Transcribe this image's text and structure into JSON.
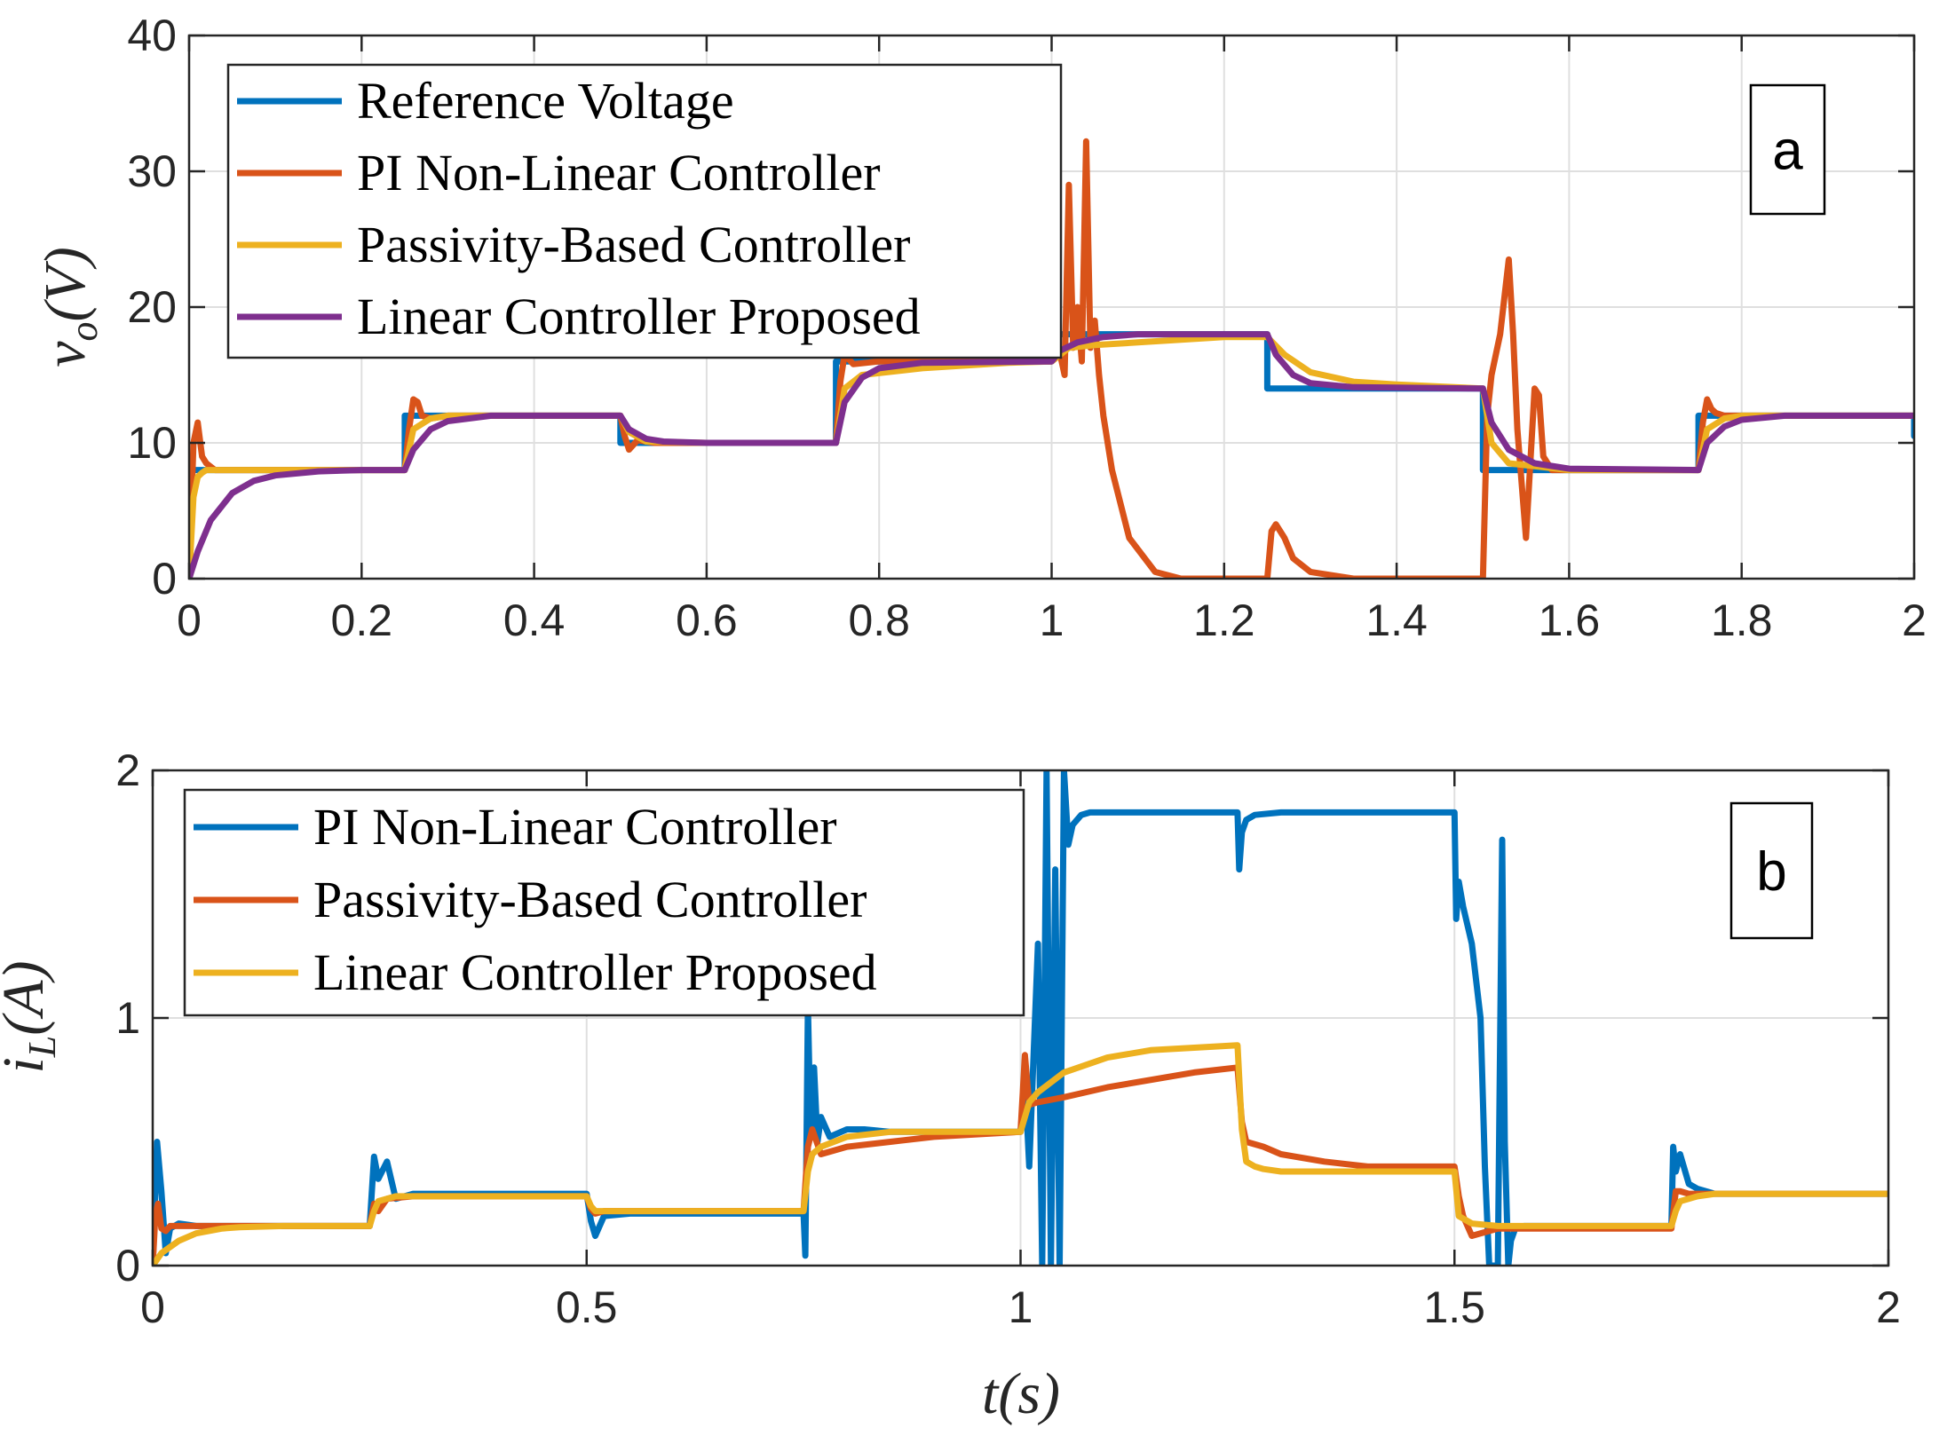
{
  "chart_data": [
    {
      "type": "line",
      "panel_tag": "a",
      "title": "",
      "xlabel": "",
      "ylabel": "v_o(V)",
      "ylabel_main": "v",
      "ylabel_sub": "o",
      "ylabel_unit": "(V)",
      "xlim": [
        0,
        2
      ],
      "ylim": [
        0,
        40
      ],
      "xticks": [
        0,
        0.2,
        0.4,
        0.6,
        0.8,
        1,
        1.2,
        1.4,
        1.6,
        1.8,
        2
      ],
      "xtick_labels": [
        "0",
        "0.2",
        "0.4",
        "0.6",
        "0.8",
        "1",
        "1.2",
        "1.4",
        "1.6",
        "1.8",
        "2"
      ],
      "yticks": [
        0,
        10,
        20,
        30,
        40
      ],
      "ytick_labels": [
        "0",
        "10",
        "20",
        "30",
        "40"
      ],
      "grid": true,
      "legend": "top-left",
      "series": [
        {
          "name": "Reference Voltage",
          "color": "#0072BD",
          "x": [
            0,
            0.25,
            0.25,
            0.5,
            0.5,
            0.75,
            0.75,
            1.0,
            1.0,
            1.25,
            1.25,
            1.5,
            1.5,
            1.75,
            1.75,
            2.0,
            2.0
          ],
          "y": [
            8,
            8,
            12,
            12,
            10,
            10,
            16,
            16,
            18,
            18,
            14,
            14,
            8,
            8,
            12,
            12,
            10.5
          ]
        },
        {
          "name": "PI Non-Linear Controller",
          "color": "#D95319",
          "x": [
            0,
            0.005,
            0.01,
            0.015,
            0.02,
            0.03,
            0.05,
            0.25,
            0.255,
            0.26,
            0.265,
            0.27,
            0.28,
            0.3,
            0.5,
            0.505,
            0.51,
            0.52,
            0.54,
            0.75,
            0.755,
            0.76,
            0.77,
            0.8,
            1.0,
            1.01,
            1.015,
            1.02,
            1.025,
            1.03,
            1.035,
            1.04,
            1.045,
            1.05,
            1.055,
            1.06,
            1.07,
            1.09,
            1.12,
            1.15,
            1.2,
            1.25,
            1.255,
            1.26,
            1.27,
            1.28,
            1.3,
            1.35,
            1.4,
            1.5,
            1.505,
            1.51,
            1.52,
            1.53,
            1.535,
            1.54,
            1.55,
            1.56,
            1.565,
            1.57,
            1.58,
            1.6,
            1.75,
            1.755,
            1.76,
            1.765,
            1.77,
            1.78,
            1.8,
            2.0
          ],
          "y": [
            0,
            10,
            11.5,
            9,
            8.5,
            8,
            8,
            8,
            11,
            13.2,
            13,
            12,
            11.8,
            12,
            12,
            10.5,
            9.5,
            10.2,
            10,
            10,
            14.5,
            16.5,
            15.8,
            16,
            16,
            16.5,
            15,
            29,
            17,
            20,
            16,
            32.2,
            17,
            19,
            15,
            12,
            8,
            3,
            0.5,
            0,
            0,
            0,
            3.5,
            4,
            3,
            1.5,
            0.5,
            0,
            0,
            0,
            12,
            15,
            18,
            23.5,
            18,
            11,
            3,
            14,
            13.5,
            9,
            8,
            8,
            8,
            11.5,
            13.2,
            12.5,
            12.2,
            12,
            12,
            12
          ]
        },
        {
          "name": "Passivity-Based Controller",
          "color": "#EDB120",
          "x": [
            0,
            0.005,
            0.01,
            0.015,
            0.02,
            0.05,
            0.25,
            0.26,
            0.28,
            0.3,
            0.5,
            0.51,
            0.53,
            0.6,
            0.75,
            0.76,
            0.78,
            0.85,
            0.95,
            1.0,
            1.02,
            1.05,
            1.1,
            1.2,
            1.25,
            1.27,
            1.3,
            1.35,
            1.4,
            1.5,
            1.51,
            1.53,
            1.6,
            1.75,
            1.76,
            1.78,
            1.8,
            2.0
          ],
          "y": [
            0,
            6,
            7.5,
            7.8,
            8,
            8,
            8,
            11,
            11.8,
            12,
            12,
            10.8,
            10.1,
            10,
            10,
            14,
            15,
            15.5,
            15.9,
            16,
            17,
            17.2,
            17.4,
            17.8,
            17.8,
            16.5,
            15.2,
            14.5,
            14.3,
            14,
            10,
            8.5,
            8,
            8,
            11,
            11.8,
            12,
            12
          ]
        },
        {
          "name": "Linear Controller Proposed",
          "color": "#7E2F8E",
          "x": [
            0,
            0.01,
            0.025,
            0.05,
            0.075,
            0.1,
            0.15,
            0.2,
            0.25,
            0.26,
            0.28,
            0.3,
            0.35,
            0.5,
            0.51,
            0.53,
            0.55,
            0.6,
            0.75,
            0.76,
            0.78,
            0.8,
            0.85,
            1.0,
            1.01,
            1.03,
            1.06,
            1.1,
            1.25,
            1.26,
            1.28,
            1.3,
            1.35,
            1.5,
            1.51,
            1.53,
            1.56,
            1.6,
            1.75,
            1.76,
            1.78,
            1.8,
            1.85,
            2.0
          ],
          "y": [
            0,
            2,
            4.3,
            6.3,
            7.2,
            7.6,
            7.9,
            8,
            8,
            9.5,
            11,
            11.6,
            12,
            12,
            11,
            10.3,
            10.1,
            10,
            10,
            13,
            14.8,
            15.5,
            15.9,
            16,
            16.8,
            17.4,
            17.8,
            18,
            18,
            16.5,
            15,
            14.4,
            14.1,
            14,
            11.5,
            9.5,
            8.5,
            8.1,
            8,
            10,
            11.2,
            11.7,
            12,
            12
          ]
        }
      ]
    },
    {
      "type": "line",
      "panel_tag": "b",
      "title": "",
      "xlabel": "t(s)",
      "ylabel": "i_L(A)",
      "ylabel_main": "i",
      "ylabel_sub": "L",
      "ylabel_unit": "(A)",
      "xlim": [
        0,
        2
      ],
      "ylim": [
        0,
        2
      ],
      "xticks": [
        0,
        0.5,
        1,
        1.5,
        2
      ],
      "xtick_labels": [
        "0",
        "0.5",
        "1",
        "1.5",
        "2"
      ],
      "yticks": [
        0,
        1,
        2
      ],
      "ytick_labels": [
        "0",
        "1",
        "2"
      ],
      "grid": true,
      "legend": "top-left",
      "series": [
        {
          "name": "PI Non-Linear Controller",
          "color": "#0072BD",
          "x": [
            0,
            0.005,
            0.01,
            0.015,
            0.02,
            0.03,
            0.05,
            0.25,
            0.255,
            0.26,
            0.27,
            0.28,
            0.3,
            0.5,
            0.505,
            0.51,
            0.52,
            0.55,
            0.75,
            0.752,
            0.755,
            0.758,
            0.762,
            0.766,
            0.77,
            0.78,
            0.8,
            0.82,
            0.85,
            1.0,
            1.005,
            1.01,
            1.015,
            1.02,
            1.025,
            1.03,
            1.035,
            1.04,
            1.045,
            1.05,
            1.055,
            1.06,
            1.07,
            1.08,
            1.1,
            1.25,
            1.252,
            1.255,
            1.26,
            1.27,
            1.3,
            1.5,
            1.502,
            1.505,
            1.51,
            1.52,
            1.53,
            1.535,
            1.54,
            1.55,
            1.555,
            1.558,
            1.562,
            1.565,
            1.57,
            1.58,
            1.6,
            1.75,
            1.752,
            1.755,
            1.76,
            1.77,
            1.78,
            1.8,
            2.0
          ],
          "y": [
            0,
            0.5,
            0.3,
            0.05,
            0.15,
            0.17,
            0.16,
            0.16,
            0.44,
            0.35,
            0.42,
            0.27,
            0.29,
            0.29,
            0.18,
            0.12,
            0.2,
            0.21,
            0.21,
            0.04,
            1.05,
            0.55,
            0.8,
            0.5,
            0.6,
            0.52,
            0.55,
            0.55,
            0.54,
            0.54,
            0.75,
            0.4,
            0.85,
            1.3,
            0.0,
            2.0,
            0.0,
            1.6,
            0.0,
            2.0,
            1.7,
            1.78,
            1.82,
            1.83,
            1.83,
            1.83,
            1.6,
            1.75,
            1.8,
            1.82,
            1.83,
            1.83,
            1.4,
            1.55,
            1.45,
            1.3,
            1.0,
            0.4,
            0.0,
            0.0,
            1.72,
            0.5,
            0.0,
            0.1,
            0.15,
            0.16,
            0.16,
            0.16,
            0.48,
            0.38,
            0.45,
            0.33,
            0.31,
            0.29,
            0.29
          ]
        },
        {
          "name": "Passivity-Based Controller",
          "color": "#D95319",
          "x": [
            0,
            0.003,
            0.006,
            0.01,
            0.015,
            0.02,
            0.05,
            0.25,
            0.255,
            0.26,
            0.27,
            0.3,
            0.5,
            0.505,
            0.51,
            0.52,
            0.55,
            0.75,
            0.755,
            0.76,
            0.77,
            0.8,
            0.85,
            0.9,
            1.0,
            1.005,
            1.01,
            1.02,
            1.05,
            1.1,
            1.2,
            1.25,
            1.255,
            1.26,
            1.28,
            1.3,
            1.35,
            1.4,
            1.5,
            1.505,
            1.51,
            1.52,
            1.55,
            1.75,
            1.755,
            1.76,
            1.77,
            1.8,
            2.0
          ],
          "y": [
            0,
            0.2,
            0.25,
            0.15,
            0.14,
            0.16,
            0.16,
            0.16,
            0.25,
            0.22,
            0.27,
            0.28,
            0.28,
            0.23,
            0.21,
            0.22,
            0.22,
            0.22,
            0.48,
            0.55,
            0.45,
            0.48,
            0.5,
            0.52,
            0.54,
            0.85,
            0.65,
            0.66,
            0.68,
            0.72,
            0.78,
            0.8,
            0.58,
            0.5,
            0.48,
            0.45,
            0.42,
            0.4,
            0.4,
            0.28,
            0.2,
            0.12,
            0.15,
            0.15,
            0.3,
            0.3,
            0.29,
            0.29,
            0.29
          ]
        },
        {
          "name": "Linear Controller Proposed",
          "color": "#EDB120",
          "x": [
            0,
            0.01,
            0.03,
            0.05,
            0.08,
            0.1,
            0.15,
            0.25,
            0.255,
            0.26,
            0.28,
            0.3,
            0.5,
            0.505,
            0.51,
            0.55,
            0.75,
            0.755,
            0.76,
            0.77,
            0.8,
            0.85,
            1.0,
            1.005,
            1.01,
            1.02,
            1.05,
            1.1,
            1.15,
            1.25,
            1.255,
            1.26,
            1.27,
            1.28,
            1.3,
            1.5,
            1.505,
            1.51,
            1.52,
            1.55,
            1.75,
            1.755,
            1.76,
            1.78,
            1.8,
            2.0
          ],
          "y": [
            0,
            0.05,
            0.1,
            0.13,
            0.15,
            0.155,
            0.16,
            0.16,
            0.22,
            0.26,
            0.28,
            0.28,
            0.28,
            0.24,
            0.22,
            0.22,
            0.22,
            0.38,
            0.45,
            0.48,
            0.52,
            0.54,
            0.54,
            0.6,
            0.66,
            0.7,
            0.78,
            0.84,
            0.87,
            0.89,
            0.55,
            0.42,
            0.4,
            0.39,
            0.38,
            0.38,
            0.2,
            0.19,
            0.17,
            0.16,
            0.16,
            0.22,
            0.26,
            0.28,
            0.29,
            0.29
          ]
        }
      ]
    }
  ]
}
